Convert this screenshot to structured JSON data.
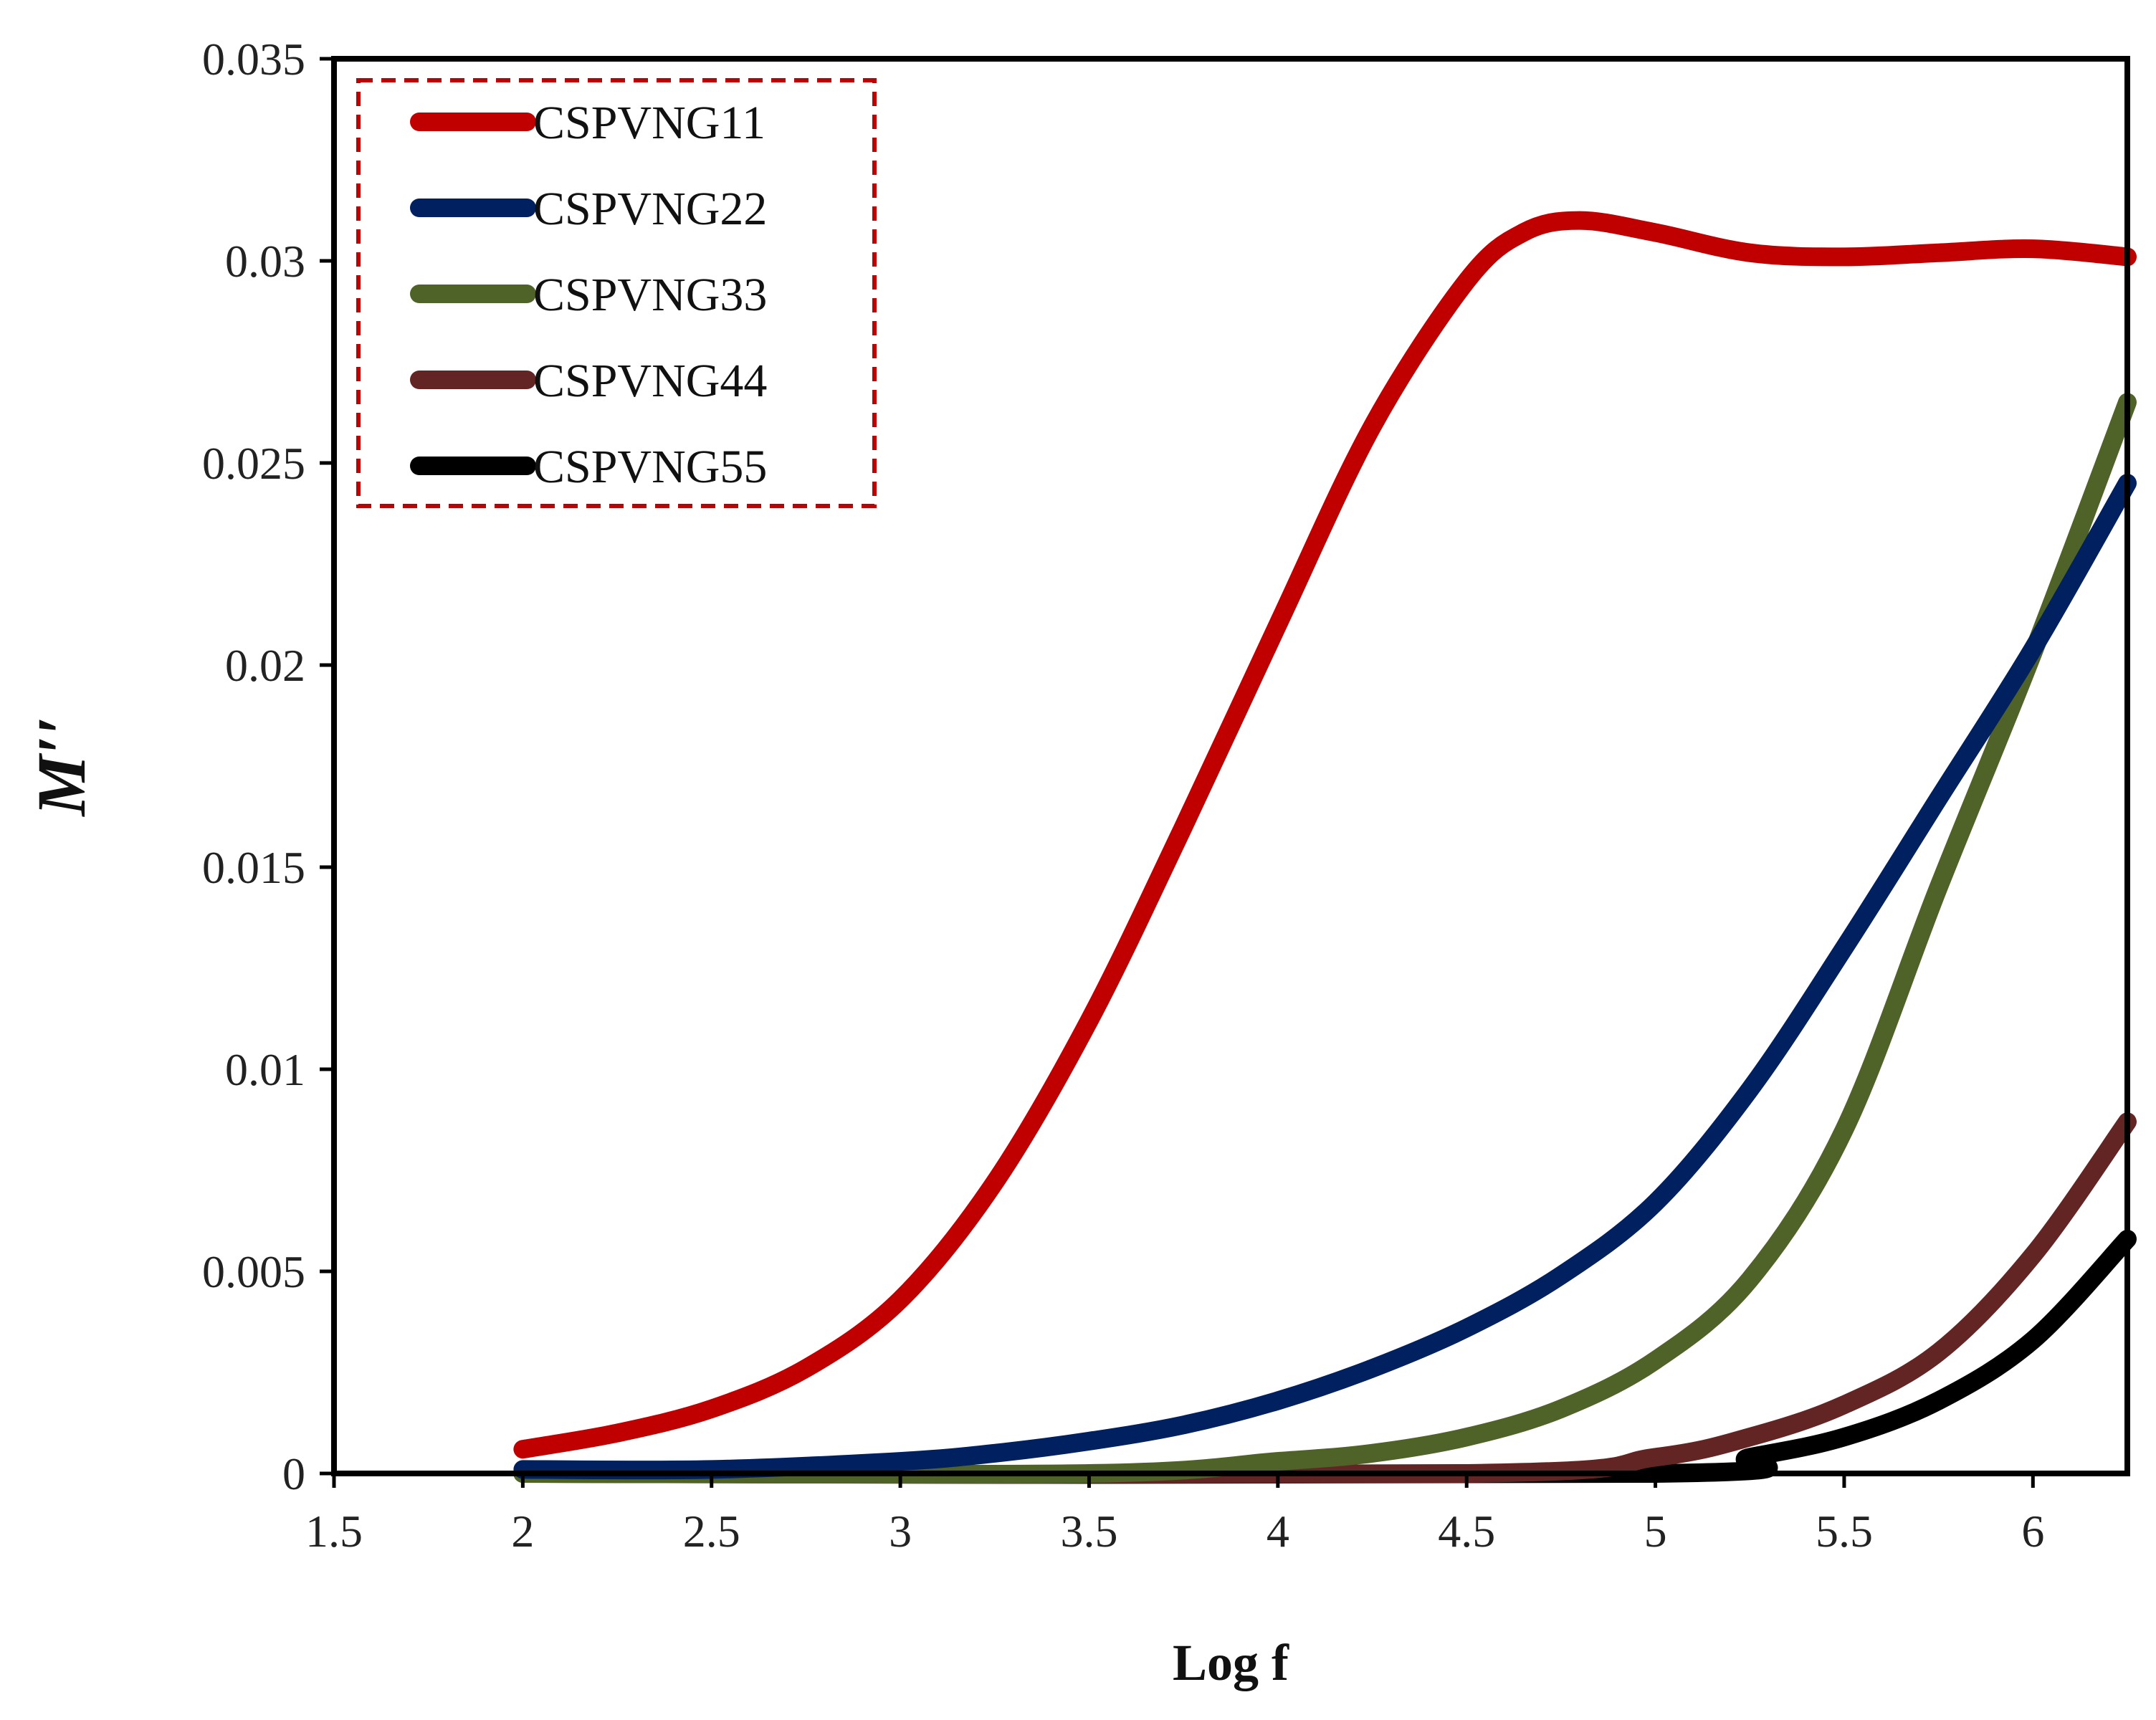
{
  "chart_data": {
    "type": "line",
    "title": "",
    "xlabel": "Log f",
    "ylabel": "M′′",
    "xlim": [
      1.5,
      6.25
    ],
    "ylim": [
      0,
      0.035
    ],
    "xticks": [
      "1.5",
      "2",
      "2.5",
      "3",
      "3.5",
      "4",
      "4.5",
      "5",
      "5.5",
      "6"
    ],
    "yticks": [
      "0",
      "0.005",
      "0.01",
      "0.015",
      "0.02",
      "0.025",
      "0.03",
      "0.035"
    ],
    "grid": false,
    "legend_position": "top-left",
    "legend_border": "dashed",
    "legend_border_color": "#c00000",
    "series": [
      {
        "name": "CSPVNG11",
        "color": "#c00000",
        "points": [
          [
            2.0,
            0.0006
          ],
          [
            2.25,
            0.001
          ],
          [
            2.5,
            0.0016
          ],
          [
            2.75,
            0.0026
          ],
          [
            3.0,
            0.0043
          ],
          [
            3.25,
            0.0072
          ],
          [
            3.5,
            0.0112
          ],
          [
            3.75,
            0.016
          ],
          [
            4.0,
            0.021
          ],
          [
            4.25,
            0.0259
          ],
          [
            4.5,
            0.0295
          ],
          [
            4.65,
            0.0307
          ],
          [
            4.8,
            0.031
          ],
          [
            5.0,
            0.0307
          ],
          [
            5.25,
            0.0302
          ],
          [
            5.5,
            0.0301
          ],
          [
            5.75,
            0.0302
          ],
          [
            6.0,
            0.0303
          ],
          [
            6.25,
            0.0301
          ]
        ]
      },
      {
        "name": "CSPVNG22",
        "color": "#002060",
        "points": [
          [
            2.0,
            0.0001
          ],
          [
            2.5,
            0.0001
          ],
          [
            3.0,
            0.0003
          ],
          [
            3.25,
            0.0005
          ],
          [
            3.5,
            0.0008
          ],
          [
            3.75,
            0.0012
          ],
          [
            4.0,
            0.0018
          ],
          [
            4.25,
            0.0026
          ],
          [
            4.5,
            0.0036
          ],
          [
            4.75,
            0.0049
          ],
          [
            5.0,
            0.0067
          ],
          [
            5.25,
            0.0095
          ],
          [
            5.5,
            0.013
          ],
          [
            5.75,
            0.0167
          ],
          [
            6.0,
            0.0204
          ],
          [
            6.25,
            0.0245
          ]
        ]
      },
      {
        "name": "CSPVNG33",
        "color": "#4f6228",
        "points": [
          [
            2.0,
            0.0
          ],
          [
            3.5,
            0.0
          ],
          [
            4.0,
            0.0003
          ],
          [
            4.25,
            0.0005
          ],
          [
            4.5,
            0.0009
          ],
          [
            4.75,
            0.0016
          ],
          [
            5.0,
            0.0028
          ],
          [
            5.25,
            0.0048
          ],
          [
            5.5,
            0.0085
          ],
          [
            5.75,
            0.0145
          ],
          [
            6.0,
            0.0203
          ],
          [
            6.25,
            0.0265
          ]
        ]
      },
      {
        "name": "CSPVNG44",
        "color": "#632523",
        "points": [
          [
            2.0,
            0.0
          ],
          [
            4.5,
            0.0
          ],
          [
            5.0,
            0.0004
          ],
          [
            5.25,
            0.0009
          ],
          [
            5.5,
            0.0017
          ],
          [
            5.75,
            0.003
          ],
          [
            6.0,
            0.0054
          ],
          [
            6.25,
            0.0087
          ]
        ]
      },
      {
        "name": "CSPVNG55",
        "color": "#000000",
        "points": [
          [
            2.0,
            0.0
          ],
          [
            5.0,
            0.0
          ],
          [
            5.25,
            0.0004
          ],
          [
            5.5,
            0.0009
          ],
          [
            5.75,
            0.0018
          ],
          [
            6.0,
            0.0033
          ],
          [
            6.25,
            0.0058
          ]
        ]
      }
    ]
  }
}
